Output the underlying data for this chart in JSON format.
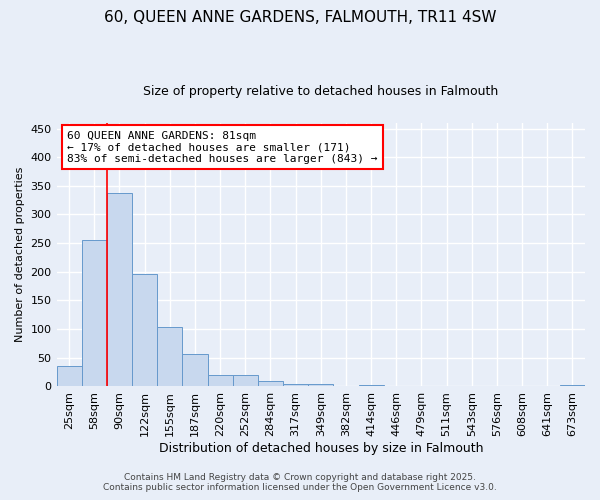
{
  "title_line1": "60, QUEEN ANNE GARDENS, FALMOUTH, TR11 4SW",
  "title_line2": "Size of property relative to detached houses in Falmouth",
  "xlabel": "Distribution of detached houses by size in Falmouth",
  "ylabel": "Number of detached properties",
  "bin_labels": [
    "25sqm",
    "58sqm",
    "90sqm",
    "122sqm",
    "155sqm",
    "187sqm",
    "220sqm",
    "252sqm",
    "284sqm",
    "317sqm",
    "349sqm",
    "382sqm",
    "414sqm",
    "446sqm",
    "479sqm",
    "511sqm",
    "543sqm",
    "576sqm",
    "608sqm",
    "641sqm",
    "673sqm"
  ],
  "bar_heights": [
    35,
    255,
    338,
    197,
    104,
    57,
    20,
    20,
    9,
    5,
    4,
    0,
    3,
    0,
    0,
    0,
    0,
    0,
    0,
    0,
    3
  ],
  "bar_color": "#c8d8ee",
  "bar_edge_color": "#6699cc",
  "red_line_bin_index": 2,
  "annotation_text": "60 QUEEN ANNE GARDENS: 81sqm\n← 17% of detached houses are smaller (171)\n83% of semi-detached houses are larger (843) →",
  "annotation_box_color": "white",
  "annotation_box_edge_color": "red",
  "ylim": [
    0,
    460
  ],
  "yticks": [
    0,
    50,
    100,
    150,
    200,
    250,
    300,
    350,
    400,
    450
  ],
  "bg_color": "#e8eef8",
  "grid_color": "white",
  "title_fontsize": 11,
  "subtitle_fontsize": 9,
  "xlabel_fontsize": 9,
  "ylabel_fontsize": 8,
  "tick_fontsize": 8,
  "annotation_fontsize": 8,
  "footer_line1": "Contains HM Land Registry data © Crown copyright and database right 2025.",
  "footer_line2": "Contains public sector information licensed under the Open Government Licence v3.0."
}
